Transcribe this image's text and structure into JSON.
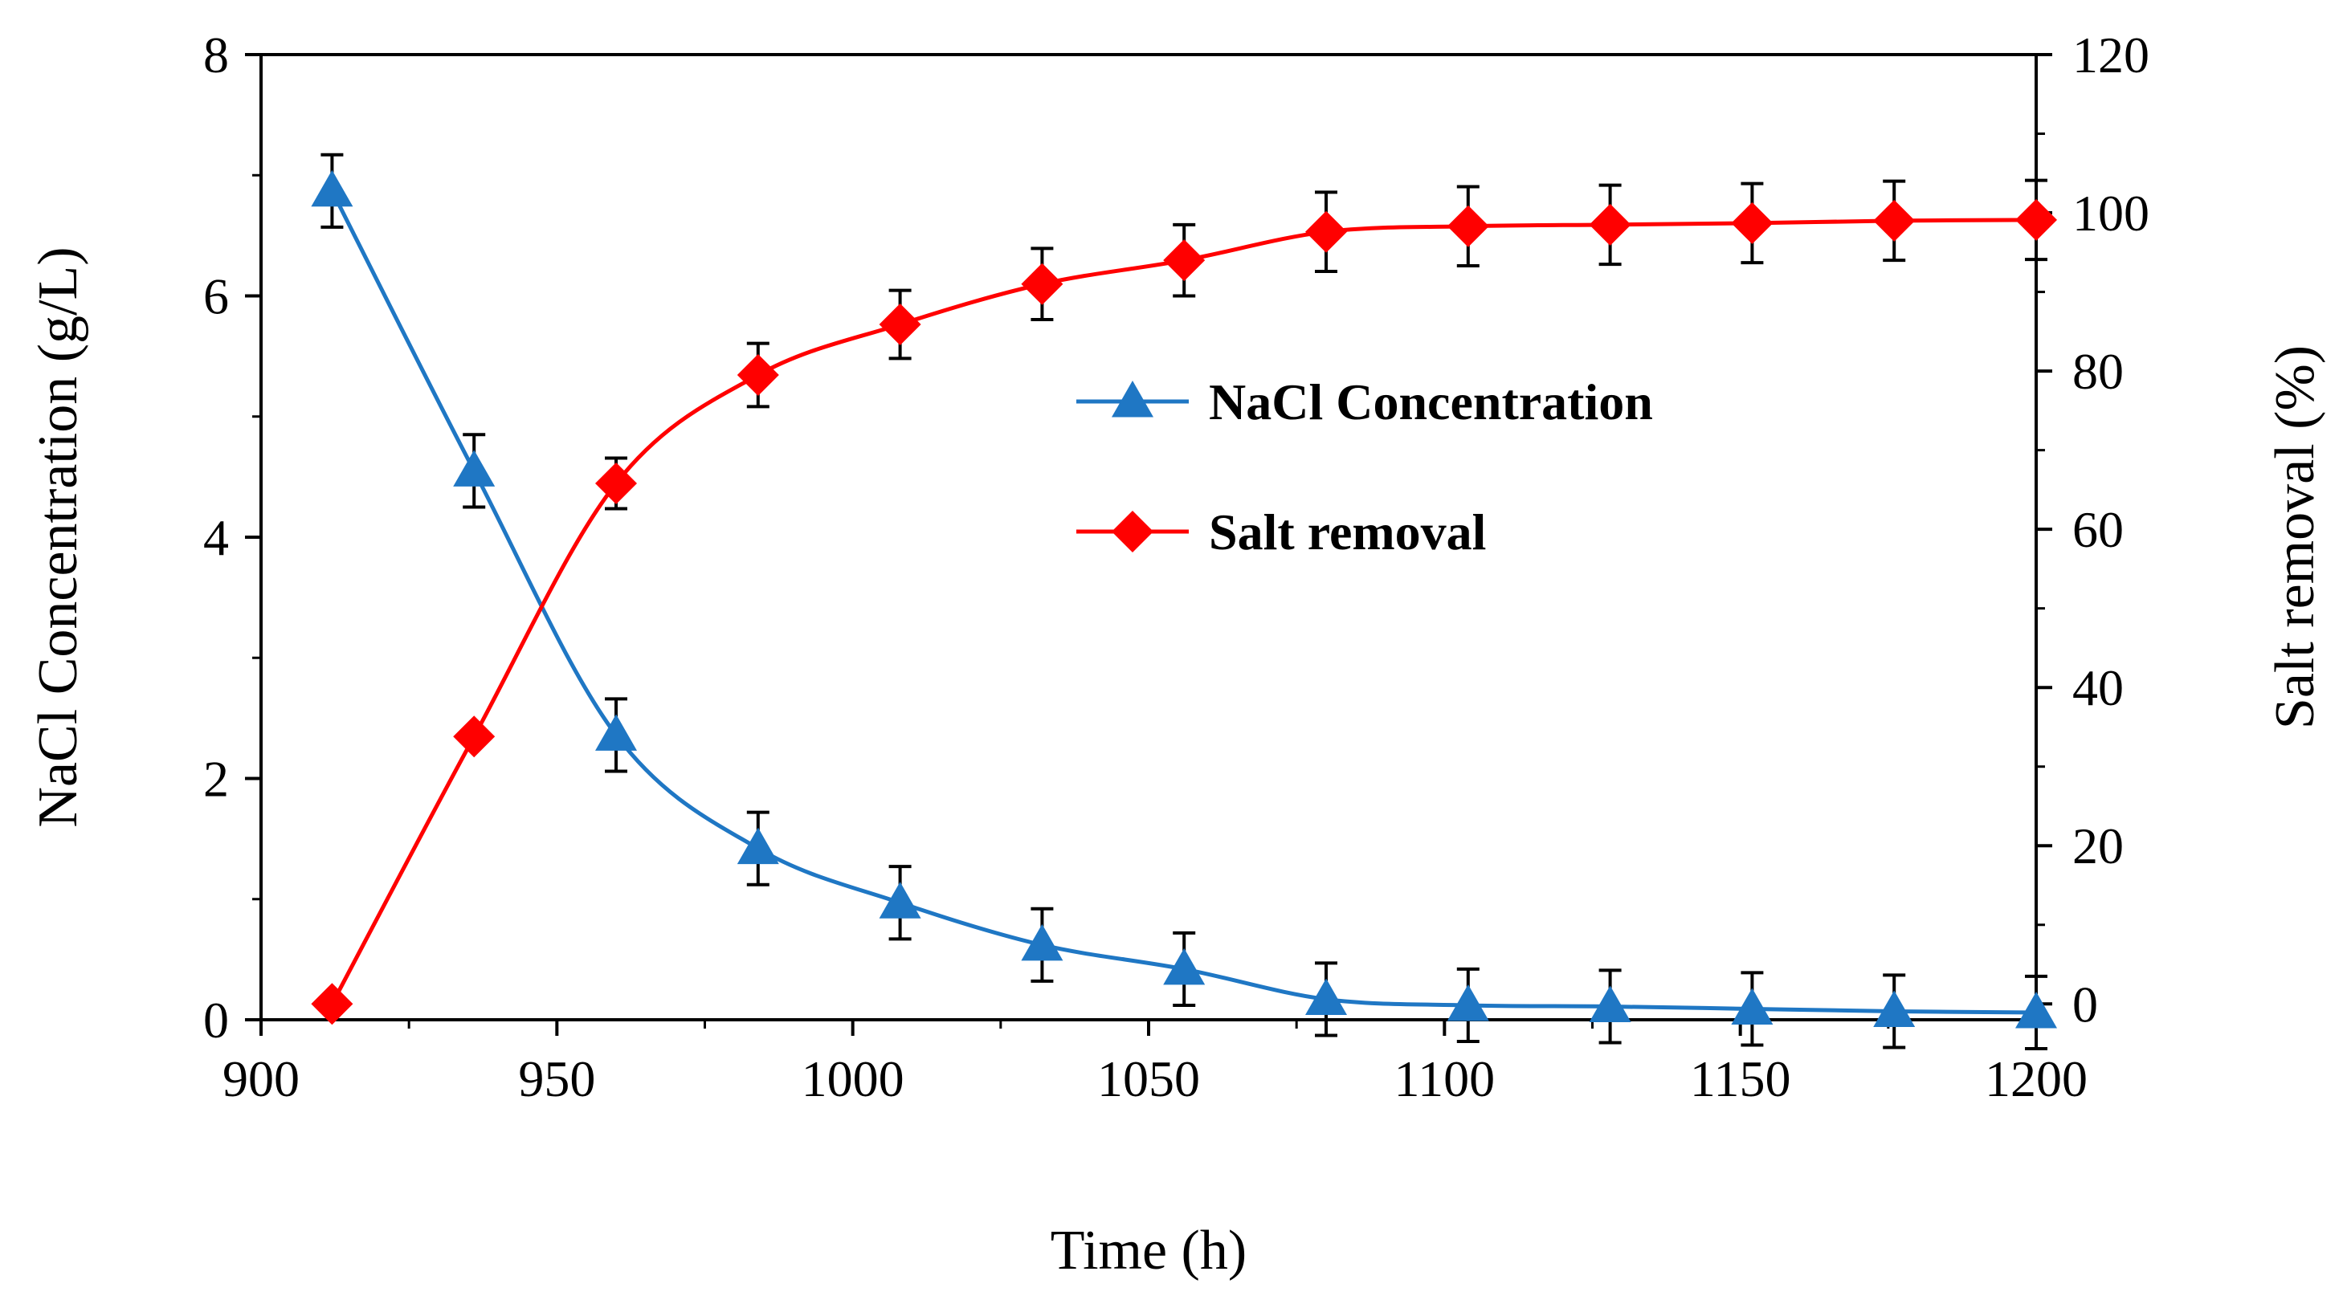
{
  "chart_data": {
    "type": "line",
    "title": "",
    "xlabel": "Time (h)",
    "ylabel_left": "NaCl Concentration (g/L)",
    "ylabel_right": "Salt removal (%)",
    "xlim": [
      900,
      1200
    ],
    "ylim_left": [
      0,
      8
    ],
    "ylim_right": [
      -2,
      120
    ],
    "x_ticks": [
      900,
      950,
      1000,
      1050,
      1100,
      1150,
      1200
    ],
    "y_left_ticks": [
      0,
      2,
      4,
      6,
      8
    ],
    "y_right_ticks": [
      0,
      20,
      40,
      60,
      80,
      100,
      120
    ],
    "grid": false,
    "legend_position": "center-right",
    "x": [
      912,
      936,
      960,
      984,
      1008,
      1032,
      1056,
      1080,
      1104,
      1128,
      1152,
      1176,
      1200
    ],
    "series": [
      {
        "name": "NaCl Concentration",
        "axis": "left",
        "marker": "triangle",
        "color": "#1f77c4",
        "values": [
          6.87,
          4.55,
          2.36,
          1.42,
          0.97,
          0.62,
          0.42,
          0.17,
          0.12,
          0.11,
          0.09,
          0.07,
          0.06
        ],
        "errors": [
          0.3,
          0.3,
          0.3,
          0.3,
          0.3,
          0.3,
          0.3,
          0.3,
          0.3,
          0.3,
          0.3,
          0.3,
          0.3
        ]
      },
      {
        "name": "Salt removal",
        "axis": "right",
        "marker": "diamond",
        "color": "#ff0000",
        "values": [
          0,
          33.8,
          65.8,
          79.5,
          85.9,
          91.0,
          94.0,
          97.6,
          98.3,
          98.5,
          98.7,
          99.0,
          99.1
        ],
        "errors": [
          0,
          0,
          3.2,
          4.0,
          4.3,
          4.5,
          4.5,
          5.0,
          5.0,
          5.0,
          5.0,
          5.0,
          5.0
        ]
      }
    ]
  }
}
